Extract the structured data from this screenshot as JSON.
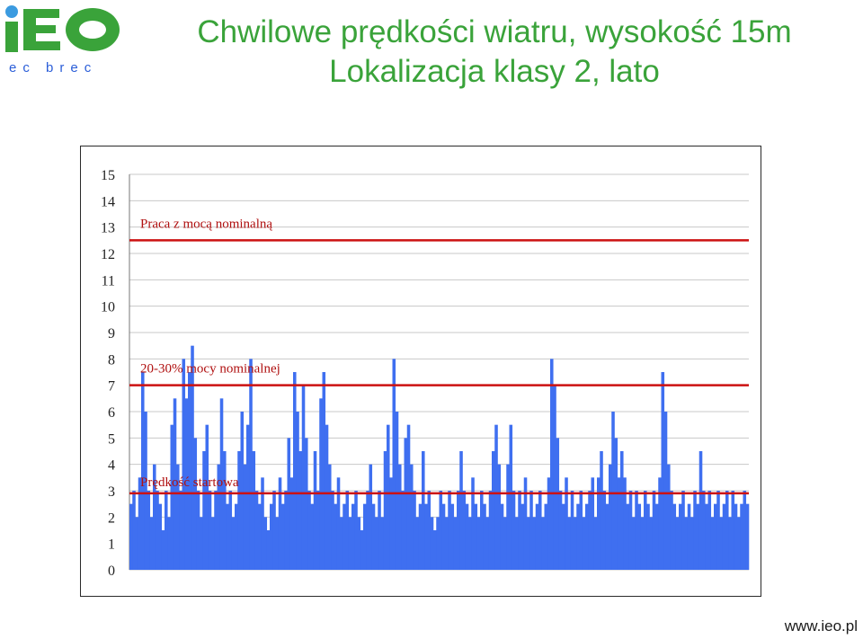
{
  "logo": {
    "main_text": "iEO",
    "sub_text": "ec brec",
    "dot_color": "#3b9be0",
    "text_color": "#3aa33a"
  },
  "header": {
    "title_line1": "Chwilowe prędkości wiatru, wysokość 15m",
    "title_line2": "Lokalizacja klasy 2, lato"
  },
  "footer": {
    "url": "www.ieo.pl"
  },
  "colors": {
    "title": "#3aa33a",
    "bars": "#3f6ff0",
    "ref_line": "#cc1111",
    "grid": "#c8c8c8"
  },
  "chart_data": {
    "type": "area",
    "title": "",
    "xlabel": "",
    "ylabel": "",
    "ylim": [
      0,
      15
    ],
    "yticks": [
      0,
      1,
      2,
      3,
      4,
      5,
      6,
      7,
      8,
      9,
      10,
      11,
      12,
      13,
      14,
      15
    ],
    "grid": true,
    "legend": "none",
    "series": [
      {
        "values": [
          2.5,
          3.0,
          2.0,
          3.5,
          7.5,
          6.0,
          3.0,
          2.0,
          4.0,
          3.0,
          2.5,
          1.5,
          3.0,
          2.0,
          5.5,
          6.5,
          4.0,
          3.0,
          8.0,
          6.5,
          7.5,
          8.5,
          5.0,
          3.0,
          2.0,
          4.5,
          5.5,
          3.0,
          2.0,
          3.0,
          4.0,
          6.5,
          4.5,
          2.5,
          3.0,
          2.0,
          2.5,
          4.5,
          6.0,
          4.0,
          5.5,
          8.0,
          4.5,
          3.0,
          2.5,
          3.5,
          2.0,
          1.5,
          2.5,
          3.0,
          2.0,
          3.5,
          2.5,
          3.0,
          5.0,
          3.5,
          7.5,
          6.0,
          4.5,
          7.0,
          5.0,
          3.0,
          2.5,
          4.5,
          3.0,
          6.5,
          7.5,
          5.5,
          4.0,
          3.0,
          2.5,
          3.5,
          2.0,
          2.5,
          3.0,
          2.0,
          2.5,
          3.0,
          2.0,
          1.5,
          2.5,
          3.0,
          4.0,
          2.5,
          2.0,
          3.0,
          2.0,
          4.5,
          5.5,
          3.5,
          8.0,
          6.0,
          4.0,
          3.0,
          5.0,
          5.5,
          4.0,
          3.0,
          2.0,
          2.5,
          4.5,
          2.5,
          3.0,
          2.0,
          1.5,
          2.0,
          3.0,
          2.5,
          2.0,
          3.0,
          2.5,
          2.0,
          3.0,
          4.5,
          3.0,
          2.5,
          2.0,
          3.5,
          2.5,
          2.0,
          3.0,
          2.5,
          2.0,
          3.0,
          4.5,
          5.5,
          4.0,
          2.5,
          2.0,
          4.0,
          5.5,
          3.0,
          2.0,
          3.0,
          2.5,
          3.5,
          2.0,
          3.0,
          2.0,
          2.5,
          3.0,
          2.0,
          2.5,
          3.5,
          8.0,
          7.0,
          5.0,
          3.0,
          2.5,
          3.5,
          2.0,
          3.0,
          2.0,
          2.5,
          3.0,
          2.0,
          2.5,
          3.0,
          3.5,
          2.0,
          3.5,
          4.5,
          3.0,
          2.5,
          4.0,
          6.0,
          5.0,
          3.5,
          4.5,
          3.5,
          2.5,
          3.0,
          2.0,
          3.0,
          2.5,
          2.0,
          3.0,
          2.5,
          2.0,
          3.0,
          2.5,
          3.5,
          7.5,
          6.0,
          4.0,
          3.0,
          2.5,
          2.0,
          2.5,
          3.0,
          2.0,
          2.5,
          2.0,
          3.0,
          2.5,
          4.5,
          3.0,
          2.5,
          3.0,
          2.0,
          2.5,
          3.0,
          2.0,
          2.5,
          3.0,
          2.0,
          3.0,
          2.5,
          2.0,
          2.5,
          3.0,
          2.5
        ]
      }
    ],
    "reference_lines": [
      {
        "label": "Praca z mocą nominalną",
        "y": 12.5
      },
      {
        "label": "20-30% mocy nominalnej",
        "y": 7.0
      },
      {
        "label": "Prędkość startowa",
        "y": 2.9
      }
    ]
  }
}
